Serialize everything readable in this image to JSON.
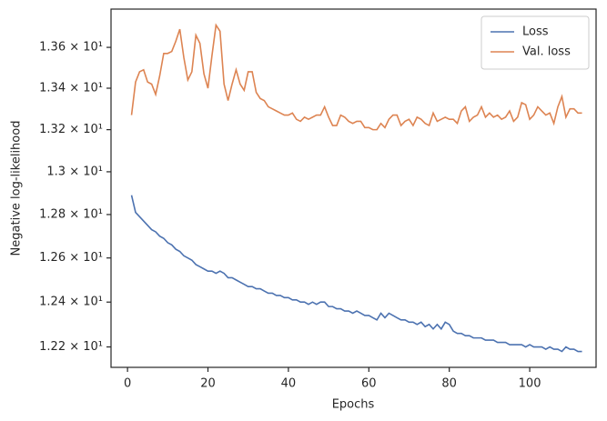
{
  "chart_data": {
    "type": "line",
    "xlabel": "Epochs",
    "ylabel": "Negative log-likelihood",
    "log_y": true,
    "legend": "upper right",
    "x": [
      1,
      2,
      3,
      4,
      5,
      6,
      7,
      8,
      9,
      10,
      11,
      12,
      13,
      14,
      15,
      16,
      17,
      18,
      19,
      20,
      21,
      22,
      23,
      24,
      25,
      26,
      27,
      28,
      29,
      30,
      31,
      32,
      33,
      34,
      35,
      36,
      37,
      38,
      39,
      40,
      41,
      42,
      43,
      44,
      45,
      46,
      47,
      48,
      49,
      50,
      51,
      52,
      53,
      54,
      55,
      56,
      57,
      58,
      59,
      60,
      61,
      62,
      63,
      64,
      65,
      66,
      67,
      68,
      69,
      70,
      71,
      72,
      73,
      74,
      75,
      76,
      77,
      78,
      79,
      80,
      81,
      82,
      83,
      84,
      85,
      86,
      87,
      88,
      89,
      90,
      91,
      92,
      93,
      94,
      95,
      96,
      97,
      98,
      99,
      100,
      101,
      102,
      103,
      104,
      105,
      106,
      107,
      108,
      109,
      110,
      111,
      112,
      113
    ],
    "series": [
      {
        "name": "Loss",
        "color": "#4c72b0",
        "values": [
          12.89,
          12.81,
          12.79,
          12.77,
          12.75,
          12.73,
          12.72,
          12.7,
          12.69,
          12.67,
          12.66,
          12.64,
          12.63,
          12.61,
          12.6,
          12.59,
          12.57,
          12.56,
          12.55,
          12.54,
          12.54,
          12.53,
          12.54,
          12.53,
          12.51,
          12.51,
          12.5,
          12.49,
          12.48,
          12.47,
          12.47,
          12.46,
          12.46,
          12.45,
          12.44,
          12.44,
          12.43,
          12.43,
          12.42,
          12.42,
          12.41,
          12.41,
          12.4,
          12.4,
          12.39,
          12.4,
          12.39,
          12.4,
          12.4,
          12.38,
          12.38,
          12.37,
          12.37,
          12.36,
          12.36,
          12.35,
          12.36,
          12.35,
          12.34,
          12.34,
          12.33,
          12.32,
          12.35,
          12.33,
          12.35,
          12.34,
          12.33,
          12.32,
          12.32,
          12.31,
          12.31,
          12.3,
          12.31,
          12.29,
          12.3,
          12.28,
          12.3,
          12.28,
          12.31,
          12.3,
          12.27,
          12.26,
          12.26,
          12.25,
          12.25,
          12.24,
          12.24,
          12.24,
          12.23,
          12.23,
          12.23,
          12.22,
          12.22,
          12.22,
          12.21,
          12.21,
          12.21,
          12.21,
          12.2,
          12.21,
          12.2,
          12.2,
          12.2,
          12.19,
          12.2,
          12.19,
          12.19,
          12.18,
          12.2,
          12.19,
          12.19,
          12.18,
          12.18
        ]
      },
      {
        "name": "Val. loss",
        "color": "#dd8452",
        "values": [
          13.27,
          13.43,
          13.48,
          13.49,
          13.43,
          13.42,
          13.37,
          13.46,
          13.57,
          13.57,
          13.58,
          13.63,
          13.69,
          13.55,
          13.44,
          13.48,
          13.66,
          13.62,
          13.47,
          13.4,
          13.56,
          13.71,
          13.68,
          13.42,
          13.34,
          13.42,
          13.49,
          13.42,
          13.39,
          13.48,
          13.48,
          13.38,
          13.35,
          13.34,
          13.31,
          13.3,
          13.29,
          13.28,
          13.27,
          13.27,
          13.28,
          13.25,
          13.24,
          13.26,
          13.25,
          13.26,
          13.27,
          13.27,
          13.31,
          13.26,
          13.22,
          13.22,
          13.27,
          13.26,
          13.24,
          13.23,
          13.24,
          13.24,
          13.21,
          13.21,
          13.2,
          13.2,
          13.23,
          13.21,
          13.25,
          13.27,
          13.27,
          13.22,
          13.24,
          13.25,
          13.22,
          13.26,
          13.25,
          13.23,
          13.22,
          13.28,
          13.24,
          13.25,
          13.26,
          13.25,
          13.25,
          13.23,
          13.29,
          13.31,
          13.24,
          13.26,
          13.27,
          13.31,
          13.26,
          13.28,
          13.26,
          13.27,
          13.25,
          13.26,
          13.29,
          13.24,
          13.26,
          13.33,
          13.32,
          13.25,
          13.27,
          13.31,
          13.29,
          13.27,
          13.28,
          13.23,
          13.31,
          13.36,
          13.26,
          13.3,
          13.3,
          13.28,
          13.28
        ]
      }
    ],
    "xlim": [
      -4.1,
      116.5
    ],
    "xticks": [
      0,
      20,
      40,
      60,
      80,
      100
    ],
    "ylim": [
      12.11,
      13.79
    ],
    "yticks": [
      {
        "value": 12.2,
        "label": "1.22 × 10¹"
      },
      {
        "value": 12.4,
        "label": "1.24 × 10¹"
      },
      {
        "value": 12.6,
        "label": "1.26 × 10¹"
      },
      {
        "value": 12.8,
        "label": "1.28 × 10¹"
      },
      {
        "value": 13.0,
        "label": "1.3 × 10¹"
      },
      {
        "value": 13.2,
        "label": "1.32 × 10¹"
      },
      {
        "value": 13.4,
        "label": "1.34 × 10¹"
      },
      {
        "value": 13.6,
        "label": "1.36 × 10¹"
      }
    ]
  }
}
